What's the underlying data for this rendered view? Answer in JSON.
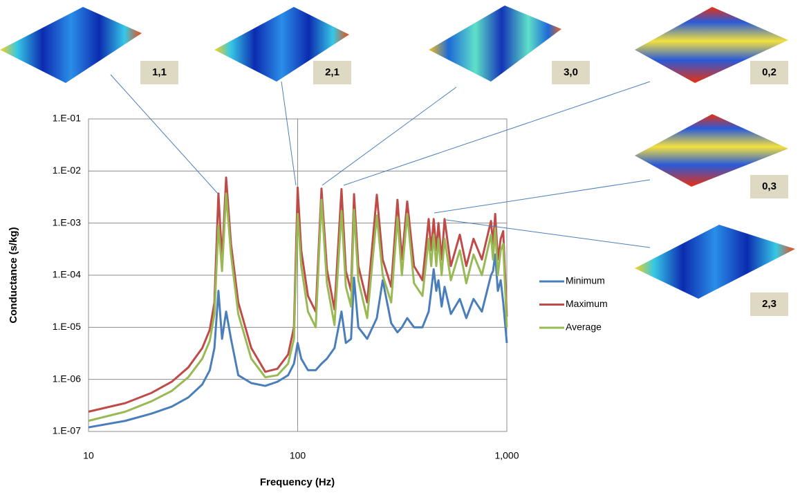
{
  "chart_data": {
    "type": "line",
    "x_label": "Frequency (Hz)",
    "y_label": "Conductance (s/kg)",
    "x": [
      10,
      15,
      20,
      25,
      30,
      35,
      38,
      40,
      41.8,
      43.5,
      45.5,
      48,
      52,
      60,
      70,
      80,
      90,
      96,
      100,
      104,
      112,
      122,
      130,
      138,
      150,
      162,
      170,
      180,
      186,
      195,
      215,
      239,
      255,
      280,
      300,
      315,
      334,
      360,
      395,
      423,
      435,
      447,
      460,
      471,
      488,
      504,
      540,
      596,
      640,
      693,
      760,
      840,
      859,
      880,
      906,
      935,
      961,
      1000
    ],
    "series": [
      {
        "name": "Minimum",
        "color": "#4a7ebb",
        "values": [
          1.2e-07,
          1.6e-07,
          2.2e-07,
          3e-07,
          4.5e-07,
          8e-07,
          1.5e-06,
          4e-06,
          5e-05,
          6e-06,
          2e-05,
          6e-06,
          1.2e-06,
          8.5e-07,
          7.5e-07,
          9e-07,
          1.2e-06,
          2e-06,
          5e-06,
          2.5e-06,
          1.5e-06,
          1.5e-06,
          2e-06,
          2.5e-06,
          4e-06,
          2e-05,
          5e-06,
          6e-06,
          9e-05,
          1e-05,
          6e-06,
          1.5e-05,
          8e-05,
          1.2e-05,
          8e-06,
          1e-05,
          1.5e-05,
          1e-05,
          1e-05,
          2e-05,
          5e-05,
          0.00013,
          5e-05,
          8e-05,
          2.5e-05,
          6e-05,
          1.8e-05,
          3.5e-05,
          1.5e-05,
          3.5e-05,
          2e-05,
          0.0001,
          0.00012,
          0.00025,
          5e-05,
          8e-05,
          3e-05,
          5e-06
        ]
      },
      {
        "name": "Maximum",
        "color": "#be4b48",
        "values": [
          2.4e-07,
          3.5e-07,
          5.5e-07,
          9e-07,
          1.7e-06,
          4e-06,
          9e-06,
          3e-05,
          0.0037,
          0.0002,
          0.0075,
          0.0004,
          3e-05,
          4e-06,
          1.4e-06,
          1.6e-06,
          3e-06,
          1e-05,
          0.0048,
          0.0003,
          4e-05,
          2e-05,
          0.0046,
          0.00013,
          2.2e-05,
          0.0045,
          0.00012,
          5e-05,
          0.0036,
          0.00015,
          3e-05,
          0.0035,
          0.0002,
          6e-05,
          0.0028,
          0.0002,
          0.0026,
          0.00015,
          8e-05,
          0.0012,
          0.0003,
          0.0012,
          0.0003,
          0.001,
          0.0002,
          0.0012,
          0.00015,
          0.0006,
          0.00015,
          0.0005,
          0.0002,
          0.0011,
          0.0004,
          0.0015,
          0.0002,
          0.0005,
          0.0007,
          1.6e-05
        ]
      },
      {
        "name": "Average",
        "color": "#98b954",
        "values": [
          1.6e-07,
          2.4e-07,
          3.8e-07,
          6e-07,
          1.1e-06,
          2.5e-06,
          5.5e-06,
          1.8e-05,
          0.0009,
          0.00012,
          0.0037,
          0.00025,
          1.8e-05,
          2.5e-06,
          1.1e-06,
          1.2e-06,
          2e-06,
          6e-06,
          0.0015,
          0.00015,
          2e-05,
          1e-05,
          0.0028,
          7e-05,
          1.1e-05,
          0.0017,
          6e-05,
          2.5e-05,
          0.0018,
          8e-05,
          1.5e-05,
          0.0014,
          0.0001,
          3e-05,
          0.0013,
          0.0001,
          0.0015,
          7e-05,
          4e-05,
          0.0005,
          0.00015,
          0.0006,
          0.00015,
          0.0005,
          0.0001,
          0.0005,
          8e-05,
          0.0003,
          7e-05,
          0.00025,
          0.0001,
          0.0006,
          0.0002,
          0.0008,
          0.0001,
          0.0003,
          0.0004,
          1e-05
        ]
      }
    ],
    "xlim": [
      10,
      1000
    ],
    "xticks": [
      10,
      100,
      {
        "value": 1000,
        "label": "1,000"
      }
    ],
    "ylim": [
      1e-07,
      0.1
    ],
    "yticks": [
      {
        "value": 1e-07,
        "label": "1.E-07"
      },
      {
        "value": 1e-06,
        "label": "1.E-06"
      },
      {
        "value": 1e-05,
        "label": "1.E-05"
      },
      {
        "value": 0.0001,
        "label": "1.E-04"
      },
      {
        "value": 0.001,
        "label": "1.E-03"
      },
      {
        "value": 0.01,
        "label": "1.E-02"
      },
      {
        "value": 0.1,
        "label": "1.E-01"
      }
    ],
    "xlog": true,
    "ylog": true,
    "grid": true,
    "legend": "right",
    "annotations": [
      "1,1",
      "2,1",
      "3,0",
      "0,2",
      "0,3",
      "2,3"
    ]
  }
}
